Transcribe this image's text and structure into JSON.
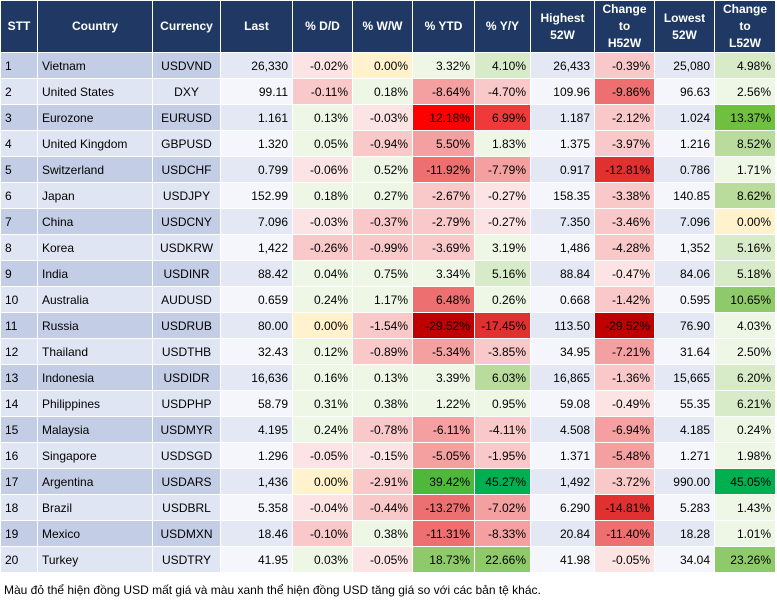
{
  "table": {
    "header": [
      "STT",
      "Country",
      "Currency",
      "Last",
      "% D/D",
      "% W/W",
      "% YTD",
      "% Y/Y",
      "Highest\n52W",
      "Change\nto\nH52W",
      "Lowest\n52W",
      "Change\nto\nL52W"
    ],
    "rows": [
      [
        "1",
        "Vietnam",
        "USDVND",
        "26,330",
        "-0.02%",
        "0.00%",
        "3.32%",
        "4.10%",
        "26,433",
        "-0.39%",
        "25,080",
        "4.98%"
      ],
      [
        "2",
        "United States",
        "DXY",
        "99.11",
        "-0.11%",
        "0.18%",
        "-8.64%",
        "-4.70%",
        "109.96",
        "-9.86%",
        "96.63",
        "2.56%"
      ],
      [
        "3",
        "Eurozone",
        "EURUSD",
        "1.161",
        "0.13%",
        "-0.03%",
        "12.18%",
        "6.99%",
        "1.187",
        "-2.12%",
        "1.024",
        "13.37%"
      ],
      [
        "4",
        "United Kingdom",
        "GBPUSD",
        "1.320",
        "0.05%",
        "-0.94%",
        "5.50%",
        "1.83%",
        "1.375",
        "-3.97%",
        "1.216",
        "8.52%"
      ],
      [
        "5",
        "Switzerland",
        "USDCHF",
        "0.799",
        "-0.06%",
        "0.52%",
        "-11.92%",
        "-7.79%",
        "0.917",
        "-12.81%",
        "0.786",
        "1.71%"
      ],
      [
        "6",
        "Japan",
        "USDJPY",
        "152.99",
        "0.18%",
        "0.27%",
        "-2.67%",
        "-0.27%",
        "158.35",
        "-3.38%",
        "140.85",
        "8.62%"
      ],
      [
        "7",
        "China",
        "USDCNY",
        "7.096",
        "-0.03%",
        "-0.37%",
        "-2.79%",
        "-0.27%",
        "7.350",
        "-3.46%",
        "7.096",
        "0.00%"
      ],
      [
        "8",
        "Korea",
        "USDKRW",
        "1,422",
        "-0.26%",
        "-0.99%",
        "-3.69%",
        "3.19%",
        "1,486",
        "-4.28%",
        "1,352",
        "5.16%"
      ],
      [
        "9",
        "India",
        "USDINR",
        "88.42",
        "0.04%",
        "0.75%",
        "3.34%",
        "5.16%",
        "88.84",
        "-0.47%",
        "84.06",
        "5.18%"
      ],
      [
        "10",
        "Australia",
        "AUDUSD",
        "0.659",
        "0.24%",
        "1.17%",
        "6.48%",
        "0.26%",
        "0.668",
        "-1.42%",
        "0.595",
        "10.65%"
      ],
      [
        "11",
        "Russia",
        "USDRUB",
        "80.00",
        "0.00%",
        "-1.54%",
        "-29.52%",
        "-17.45%",
        "113.50",
        "-29.52%",
        "76.90",
        "4.03%"
      ],
      [
        "12",
        "Thailand",
        "USDTHB",
        "32.43",
        "0.12%",
        "-0.89%",
        "-5.34%",
        "-3.85%",
        "34.95",
        "-7.21%",
        "31.64",
        "2.50%"
      ],
      [
        "13",
        "Indonesia",
        "USDIDR",
        "16,636",
        "0.16%",
        "0.13%",
        "3.39%",
        "6.03%",
        "16,865",
        "-1.36%",
        "15,665",
        "6.20%"
      ],
      [
        "14",
        "Philippines",
        "USDPHP",
        "58.79",
        "0.31%",
        "0.38%",
        "1.22%",
        "0.95%",
        "59.08",
        "-0.49%",
        "55.35",
        "6.21%"
      ],
      [
        "15",
        "Malaysia",
        "USDMYR",
        "4.195",
        "0.24%",
        "-0.78%",
        "-6.11%",
        "-4.11%",
        "4.508",
        "-6.94%",
        "4.185",
        "0.24%"
      ],
      [
        "16",
        "Singapore",
        "USDSGD",
        "1.296",
        "-0.05%",
        "-0.15%",
        "-5.05%",
        "-1.95%",
        "1.371",
        "-5.48%",
        "1.271",
        "1.98%"
      ],
      [
        "17",
        "Argentina",
        "USDARS",
        "1,436",
        "0.00%",
        "-2.91%",
        "39.42%",
        "45.27%",
        "1,492",
        "-3.72%",
        "990.00",
        "45.05%"
      ],
      [
        "18",
        "Brazil",
        "USDBRL",
        "5.358",
        "-0.04%",
        "-0.44%",
        "-13.27%",
        "-7.02%",
        "6.290",
        "-14.81%",
        "5.283",
        "1.43%"
      ],
      [
        "19",
        "Mexico",
        "USDMXN",
        "18.46",
        "-0.10%",
        "0.38%",
        "-11.31%",
        "-8.33%",
        "20.84",
        "-11.40%",
        "18.28",
        "1.01%"
      ],
      [
        "20",
        "Turkey",
        "USDTRY",
        "41.95",
        "0.03%",
        "-0.05%",
        "18.73%",
        "22.66%",
        "41.98",
        "-0.05%",
        "34.04",
        "23.26%"
      ]
    ],
    "fills": [
      [
        "#fde4e4",
        "#fff2cc",
        "#eef6e6",
        "#d8ebc8",
        "#f9c9c9",
        "#d8ebc8"
      ],
      [
        "#f9c9c9",
        "#eef6e6",
        "#f4a0a0",
        "#f9c9c9",
        "#ee6f6f",
        "#eef6e6"
      ],
      [
        "#eef6e6",
        "#fde4e4",
        "#ff0000",
        "#f03a3a",
        "#f9c9c9",
        "#70c040"
      ],
      [
        "#eef6e6",
        "#f9c9c9",
        "#f4a0a0",
        "#eef6e6",
        "#f9c9c9",
        "#b9dc9c"
      ],
      [
        "#fde4e4",
        "#eef6e6",
        "#ee6f6f",
        "#f4a0a0",
        "#e03030",
        "#eef6e6"
      ],
      [
        "#eef6e6",
        "#eef6e6",
        "#f9c9c9",
        "#fde4e4",
        "#f9c9c9",
        "#b9dc9c"
      ],
      [
        "#fde4e4",
        "#f9c9c9",
        "#f9c9c9",
        "#fde4e4",
        "#f9c9c9",
        "#fff2cc"
      ],
      [
        "#f9c9c9",
        "#f9c9c9",
        "#f9c9c9",
        "#eef6e6",
        "#f9c9c9",
        "#d8ebc8"
      ],
      [
        "#eef6e6",
        "#eef6e6",
        "#eef6e6",
        "#d8ebc8",
        "#fde4e4",
        "#d8ebc8"
      ],
      [
        "#eef6e6",
        "#eef6e6",
        "#ee6f6f",
        "#eef6e6",
        "#f9c9c9",
        "#8fca6a"
      ],
      [
        "#fff2cc",
        "#f9c9c9",
        "#c00000",
        "#e03030",
        "#c00000",
        "#eef6e6"
      ],
      [
        "#eef6e6",
        "#f9c9c9",
        "#f4a0a0",
        "#f9c9c9",
        "#f4a0a0",
        "#eef6e6"
      ],
      [
        "#eef6e6",
        "#eef6e6",
        "#eef6e6",
        "#b9dc9c",
        "#f9c9c9",
        "#d8ebc8"
      ],
      [
        "#eef6e6",
        "#eef6e6",
        "#eef6e6",
        "#eef6e6",
        "#fde4e4",
        "#d8ebc8"
      ],
      [
        "#eef6e6",
        "#f9c9c9",
        "#f4a0a0",
        "#f9c9c9",
        "#f4a0a0",
        "#eef6e6"
      ],
      [
        "#fde4e4",
        "#fde4e4",
        "#f4a0a0",
        "#f9c9c9",
        "#f4a0a0",
        "#eef6e6"
      ],
      [
        "#fff2cc",
        "#f9c9c9",
        "#4fb83a",
        "#00b050",
        "#f9c9c9",
        "#00b050"
      ],
      [
        "#fde4e4",
        "#f9c9c9",
        "#ee6f6f",
        "#f4a0a0",
        "#e03030",
        "#eef6e6"
      ],
      [
        "#f9c9c9",
        "#eef6e6",
        "#ee6f6f",
        "#f4a0a0",
        "#ee6f6f",
        "#eef6e6"
      ],
      [
        "#eef6e6",
        "#fde4e4",
        "#8fca6a",
        "#8fca6a",
        "#fde4e4",
        "#8fca6a"
      ]
    ]
  },
  "note": "Màu đỏ thể hiện đồng USD mất giá và màu xanh thể hiện đồng USD tăng giá so với các bản tệ khác."
}
